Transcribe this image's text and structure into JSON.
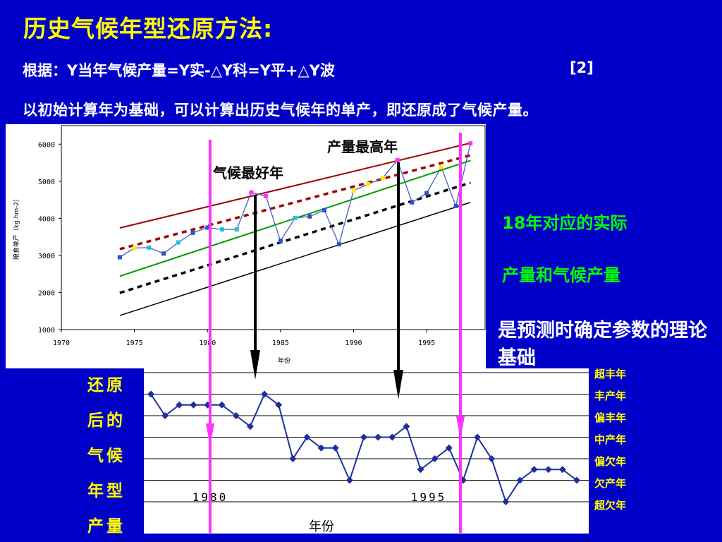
{
  "header": {
    "title": "历史气候年型还原方法:",
    "formula": "根据：Y当年气候产量=Y实-△Y科=Y平+△Y波",
    "reference": "[2]",
    "description": "以初始计算年为基础，可以计算出历史气候年的单产，即还原成了气候产量。"
  },
  "notes": {
    "line1": "18年对应的实际",
    "line2": "产量和气候产量",
    "line3": "是预测时确定参数的理论基础"
  },
  "side_labels": [
    "还原",
    "后的",
    "气候",
    "年型",
    "产量"
  ],
  "colors": {
    "background": "#0000c8",
    "title": "#ffff00",
    "notes": "#00ff00",
    "marker": "#ff33ff"
  },
  "chart_data": [
    {
      "type": "line",
      "ylabel": "粮食单产（kg.hm-2）",
      "xlabel": "年份",
      "xlim": [
        1970,
        1999
      ],
      "ylim": [
        1000,
        6500
      ],
      "xticks": [
        "1970",
        "1975",
        "1980",
        "1985",
        "1990",
        "1995"
      ],
      "yticks": [
        "1000",
        "2000",
        "3000",
        "4000",
        "5000",
        "6000"
      ],
      "annotations": [
        "产量最高年",
        "气候最好年"
      ],
      "series": [
        {
          "values": [
            [
              1974,
              2950
            ],
            [
              1975,
              3200
            ],
            [
              1976,
              3210
            ],
            [
              1977,
              3050
            ],
            [
              1978,
              3350
            ],
            [
              1979,
              3610
            ],
            [
              1980,
              3750
            ],
            [
              1981,
              3700
            ],
            [
              1982,
              3700
            ],
            [
              1983,
              4700
            ],
            [
              1984,
              4600
            ],
            [
              1985,
              3390
            ],
            [
              1986,
              4010
            ],
            [
              1987,
              4050
            ],
            [
              1988,
              4220
            ],
            [
              1989,
              3300
            ],
            [
              1990,
              4750
            ],
            [
              1991,
              4920
            ],
            [
              1992,
              5090
            ],
            [
              1993,
              5570
            ],
            [
              1994,
              4430
            ],
            [
              1995,
              4680
            ],
            [
              1996,
              5380
            ],
            [
              1997,
              4330
            ],
            [
              1998,
              6020
            ]
          ]
        },
        {
          "values": [
            [
              1974,
              3740
            ],
            [
              1998,
              6030
            ]
          ]
        },
        {
          "values": [
            [
              1974,
              3170
            ],
            [
              1998,
              5700
            ]
          ]
        },
        {
          "values": [
            [
              1974,
              2440
            ],
            [
              1998,
              5560
            ]
          ]
        },
        {
          "values": [
            [
              1974,
              1990
            ],
            [
              1998,
              4960
            ]
          ]
        },
        {
          "values": [
            [
              1974,
              1380
            ],
            [
              1998,
              4430
            ]
          ]
        }
      ]
    },
    {
      "type": "line",
      "xlabel": "年份",
      "xticks": [
        "1980",
        "1995"
      ],
      "levels": [
        "超丰年",
        "丰产年",
        "偏丰年",
        "中产年",
        "偏欠年",
        "欠产年",
        "超欠年"
      ],
      "series": [
        {
          "values": [
            [
              1974,
              1
            ],
            [
              1975,
              2
            ],
            [
              1976,
              1.5
            ],
            [
              1977,
              1.5
            ],
            [
              1978,
              1.5
            ],
            [
              1979,
              1.5
            ],
            [
              1980,
              2
            ],
            [
              1981,
              2.5
            ],
            [
              1982,
              1
            ],
            [
              1983,
              1.5
            ],
            [
              1984,
              4
            ],
            [
              1985,
              3
            ],
            [
              1986,
              3.5
            ],
            [
              1987,
              3.5
            ],
            [
              1988,
              5
            ],
            [
              1989,
              3
            ],
            [
              1990,
              3
            ],
            [
              1991,
              3
            ],
            [
              1992,
              2.5
            ],
            [
              1993,
              4.5
            ],
            [
              1994,
              4
            ],
            [
              1995,
              3.5
            ],
            [
              1996,
              5
            ],
            [
              1997,
              3
            ],
            [
              1998,
              4
            ],
            [
              1999,
              6
            ],
            [
              2000,
              5
            ],
            [
              2001,
              4.5
            ],
            [
              2002,
              4.5
            ],
            [
              2003,
              4.5
            ],
            [
              2004,
              5
            ]
          ]
        }
      ]
    }
  ]
}
